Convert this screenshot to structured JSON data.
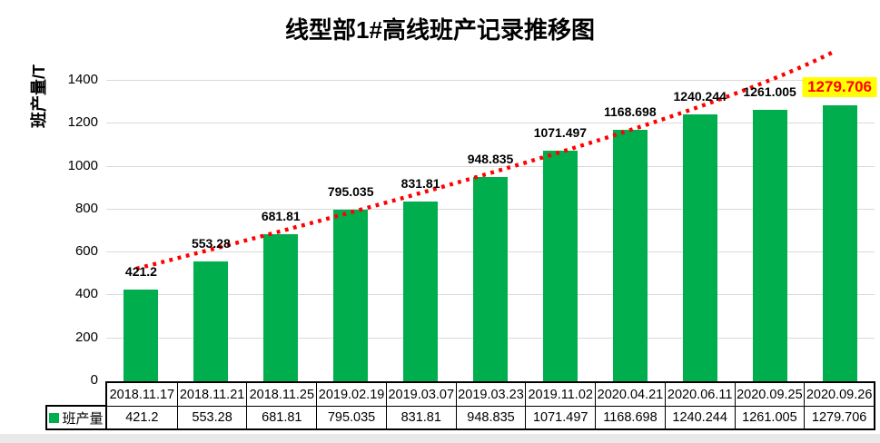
{
  "title": "线型部1#高线班产记录推移图",
  "y_axis": {
    "label": "班产量/T",
    "tick_labels": [
      "0",
      "200",
      "400",
      "600",
      "800",
      "1000",
      "1200",
      "1400"
    ]
  },
  "legend": {
    "label": "班产量"
  },
  "colors": {
    "bar": "#00AE4E",
    "trendline": "#FF0000",
    "gridline": "#D9D9D9",
    "highlight_bg": "#FFFF00",
    "highlight_text": "#FF0000"
  },
  "chart_data": {
    "type": "bar",
    "title": "线型部1#高线班产记录推移图",
    "xlabel": "",
    "ylabel": "班产量/T",
    "categories": [
      "2018.11.17",
      "2018.11.21",
      "2018.11.25",
      "2019.02.19",
      "2019.03.07",
      "2019.03.23",
      "2019.11.02",
      "2020.04.21",
      "2020.06.11",
      "2020.09.25",
      "2020.09.26"
    ],
    "series": [
      {
        "name": "班产量",
        "values": [
          421.2,
          553.28,
          681.81,
          795.035,
          831.81,
          948.835,
          1071.497,
          1168.698,
          1240.244,
          1261.005,
          1279.706
        ]
      }
    ],
    "value_labels": [
      "421.2",
      "553.28",
      "681.81",
      "795.035",
      "831.81",
      "948.835",
      "1071.497",
      "1168.698",
      "1240.244",
      "1261.005",
      "1279.706"
    ],
    "highlighted_category": "2020.09.26",
    "highlighted_label": "1279.706",
    "ylim": [
      0,
      1500
    ],
    "ytick_step": 200,
    "grid": true,
    "bar_color": "#00AE4E",
    "trendline": {
      "style": "dotted",
      "color": "#FF0000",
      "shape": "rising-curve"
    },
    "legend_position": "bottom-table-left",
    "data_table_shown": true
  }
}
